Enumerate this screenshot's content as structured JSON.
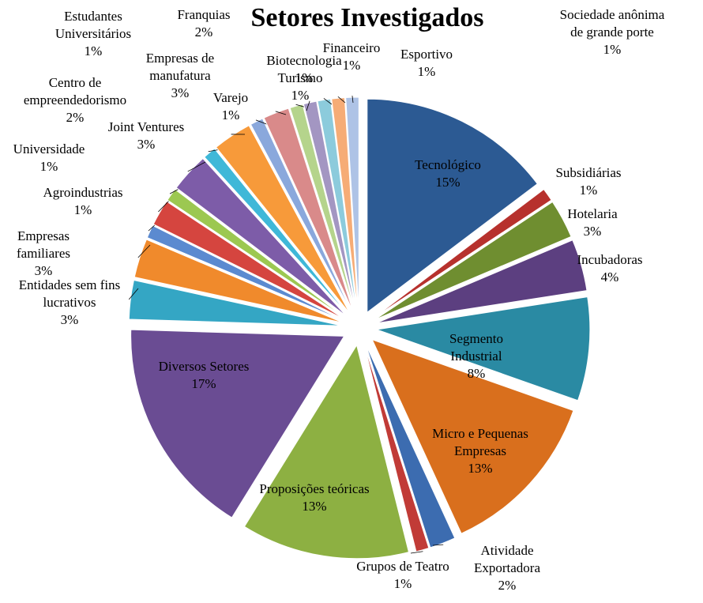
{
  "chart_data": {
    "type": "pie",
    "title": "Setores Investigados",
    "categories": [
      "Tecnológico",
      "Subsidiárias",
      "Hotelaria",
      "Incubadoras",
      "Segmento Industrial",
      "Micro e Pequenas Empresas",
      "Atividade Exportadora",
      "Grupos de Teatro",
      "Proposições teóricas",
      "Diversos Setores",
      "Entidades sem fins lucrativos",
      "Empresas familiares",
      "Agroindustrias",
      "Centro de empreendedorismo",
      "Universidade",
      "Joint Ventures",
      "Estudantes Universitários",
      "Empresas de manufatura",
      "Varejo",
      "Franquias",
      "Biotecnologia",
      "Turismo",
      "Financeiro",
      "Esportivo",
      "Sociedade anônima de grande porte"
    ],
    "values": [
      15,
      1,
      3,
      4,
      8,
      13,
      2,
      1,
      13,
      17,
      3,
      3,
      1,
      2,
      1,
      3,
      1,
      3,
      1,
      2,
      1,
      1,
      1,
      1,
      1
    ],
    "value_labels": [
      "15%",
      "1%",
      "3%",
      "4%",
      "8%",
      "13%",
      "2%",
      "1%",
      "13%",
      "17%",
      "3%",
      "3%",
      "1%",
      "2%",
      "1%",
      "3%",
      "1%",
      "3%",
      "1%",
      "2%",
      "1%",
      "1%",
      "1%",
      "1%",
      "1%"
    ],
    "colors": [
      "#2c5a93",
      "#b7312d",
      "#6f8e30",
      "#5c3f80",
      "#2a8aa3",
      "#d96f1d",
      "#3c6cb0",
      "#c13b37",
      "#8db042",
      "#6a4c93",
      "#34a6c4",
      "#f08a2c",
      "#5b8ad0",
      "#d5453f",
      "#9cc851",
      "#7d5ca8",
      "#3fb8d8",
      "#f79a3a",
      "#8aa8dc",
      "#d98a8a",
      "#b5d48c",
      "#a396c2",
      "#8ccbdc",
      "#f6ac76",
      "#aec3e6"
    ]
  }
}
